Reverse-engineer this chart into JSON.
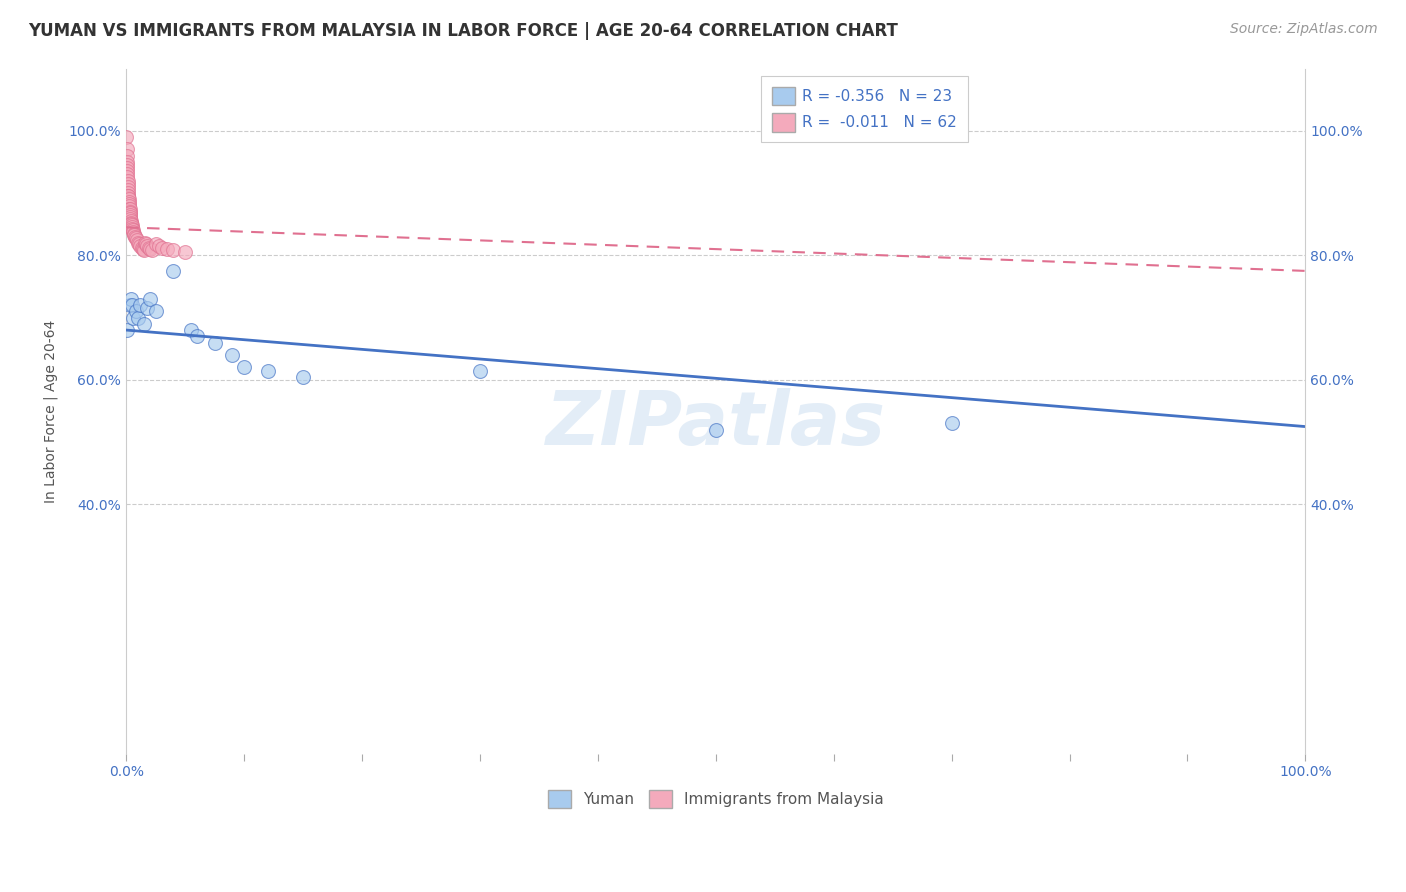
{
  "title": "YUMAN VS IMMIGRANTS FROM MALAYSIA IN LABOR FORCE | AGE 20-64 CORRELATION CHART",
  "source": "Source: ZipAtlas.com",
  "ylabel": "In Labor Force | Age 20-64",
  "watermark": "ZIPatlas",
  "legend_label1": "Yuman",
  "legend_label2": "Immigrants from Malaysia",
  "R1": -0.356,
  "N1": 23,
  "R2": -0.011,
  "N2": 62,
  "color_blue": "#A8CBEE",
  "color_pink": "#F4AABC",
  "color_blue_line": "#4472C4",
  "color_pink_line": "#E07090",
  "background": "#FFFFFF",
  "yuman_x": [
    0.001,
    0.003,
    0.004,
    0.005,
    0.006,
    0.008,
    0.01,
    0.012,
    0.015,
    0.018,
    0.02,
    0.025,
    0.04,
    0.055,
    0.06,
    0.075,
    0.09,
    0.1,
    0.12,
    0.15,
    0.3,
    0.5,
    0.7
  ],
  "yuman_y": [
    0.68,
    0.72,
    0.73,
    0.72,
    0.7,
    0.71,
    0.7,
    0.72,
    0.69,
    0.715,
    0.73,
    0.71,
    0.775,
    0.68,
    0.67,
    0.66,
    0.64,
    0.62,
    0.615,
    0.605,
    0.615,
    0.52,
    0.53
  ],
  "malaysia_x": [
    0.0002,
    0.0003,
    0.0004,
    0.0005,
    0.0006,
    0.0007,
    0.0008,
    0.0009,
    0.001,
    0.0011,
    0.0012,
    0.0013,
    0.0014,
    0.0015,
    0.0016,
    0.0017,
    0.0018,
    0.0019,
    0.002,
    0.0021,
    0.0022,
    0.0023,
    0.0025,
    0.0026,
    0.0027,
    0.0028,
    0.003,
    0.0031,
    0.0032,
    0.0033,
    0.0035,
    0.0037,
    0.004,
    0.0042,
    0.0045,
    0.0048,
    0.005,
    0.0055,
    0.006,
    0.0065,
    0.007,
    0.0075,
    0.008,
    0.009,
    0.01,
    0.011,
    0.012,
    0.013,
    0.014,
    0.015,
    0.016,
    0.017,
    0.018,
    0.019,
    0.02,
    0.022,
    0.025,
    0.028,
    0.03,
    0.035,
    0.04,
    0.05
  ],
  "malaysia_y": [
    0.99,
    0.97,
    0.96,
    0.95,
    0.945,
    0.94,
    0.935,
    0.93,
    0.925,
    0.92,
    0.915,
    0.91,
    0.905,
    0.9,
    0.895,
    0.89,
    0.892,
    0.895,
    0.89,
    0.885,
    0.883,
    0.88,
    0.875,
    0.87,
    0.872,
    0.875,
    0.87,
    0.868,
    0.865,
    0.862,
    0.858,
    0.855,
    0.852,
    0.85,
    0.848,
    0.845,
    0.842,
    0.84,
    0.838,
    0.835,
    0.832,
    0.83,
    0.828,
    0.825,
    0.82,
    0.818,
    0.815,
    0.812,
    0.81,
    0.808,
    0.82,
    0.818,
    0.815,
    0.812,
    0.81,
    0.808,
    0.818,
    0.815,
    0.812,
    0.81,
    0.808,
    0.806
  ],
  "xlim": [
    0.0,
    1.0
  ],
  "ylim": [
    0.0,
    1.1
  ],
  "blue_line_x0": 0.0,
  "blue_line_y0": 0.68,
  "blue_line_x1": 1.0,
  "blue_line_y1": 0.525,
  "pink_line_x0": 0.0,
  "pink_line_y0": 0.845,
  "pink_line_x1": 1.0,
  "pink_line_y1": 0.775,
  "title_fontsize": 12,
  "axis_fontsize": 10,
  "tick_fontsize": 10,
  "source_fontsize": 10
}
